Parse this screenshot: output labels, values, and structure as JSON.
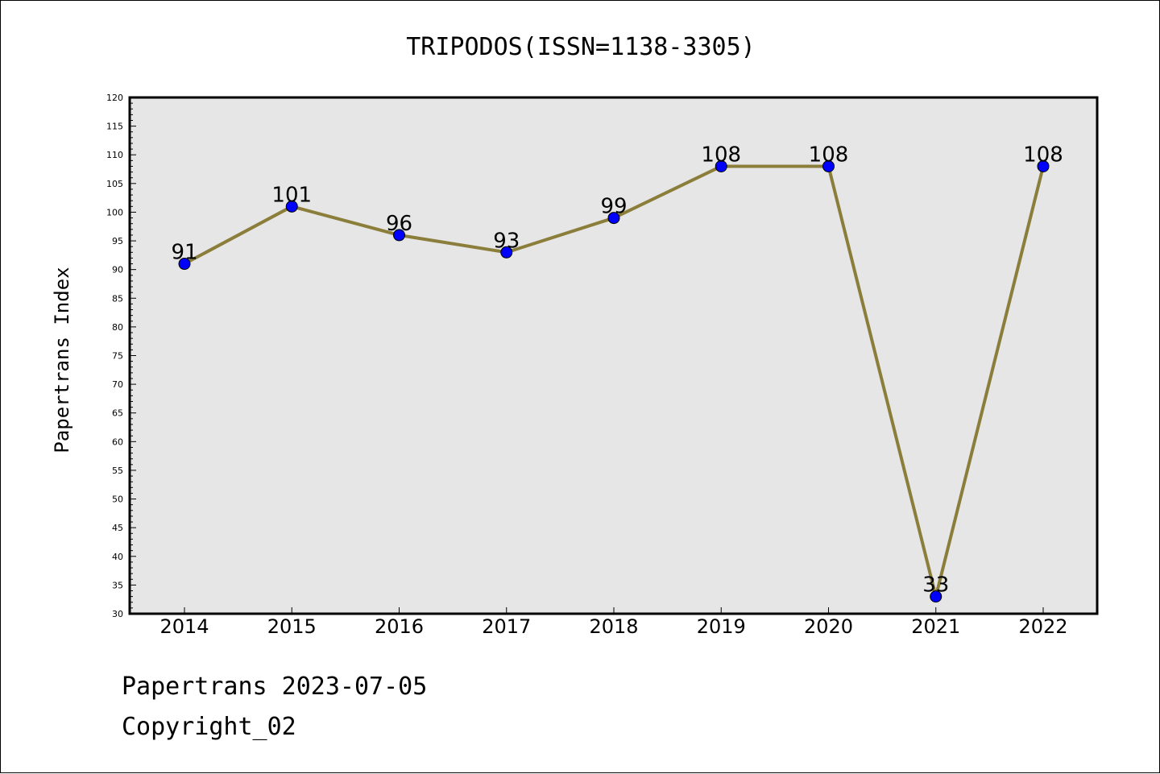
{
  "chart_data": {
    "type": "line",
    "title": "TRIPODOS(ISSN=1138-3305)",
    "ylabel": "Papertrans Index",
    "xlabel": "",
    "categories": [
      "2014",
      "2015",
      "2016",
      "2017",
      "2018",
      "2019",
      "2020",
      "2021",
      "2022"
    ],
    "series": [
      {
        "values": [
          91,
          101,
          96,
          93,
          99,
          108,
          108,
          33,
          108
        ]
      }
    ],
    "data_labels": [
      "91",
      "101",
      "96",
      "93",
      "99",
      "108",
      "108",
      "33",
      "108"
    ],
    "ylim": [
      30,
      120
    ],
    "yticks": [
      "30",
      "35",
      "40",
      "45",
      "50",
      "55",
      "60",
      "65",
      "70",
      "75",
      "80",
      "85",
      "90",
      "95",
      "100",
      "105",
      "110",
      "115",
      "120"
    ],
    "grid": false,
    "colors": {
      "line": "#8b7d3a",
      "marker": "#0000ff",
      "plot_background": "#e6e6e6"
    }
  },
  "footer": {
    "line1": "Papertrans 2023-07-05",
    "line2": "Copyright_02"
  }
}
